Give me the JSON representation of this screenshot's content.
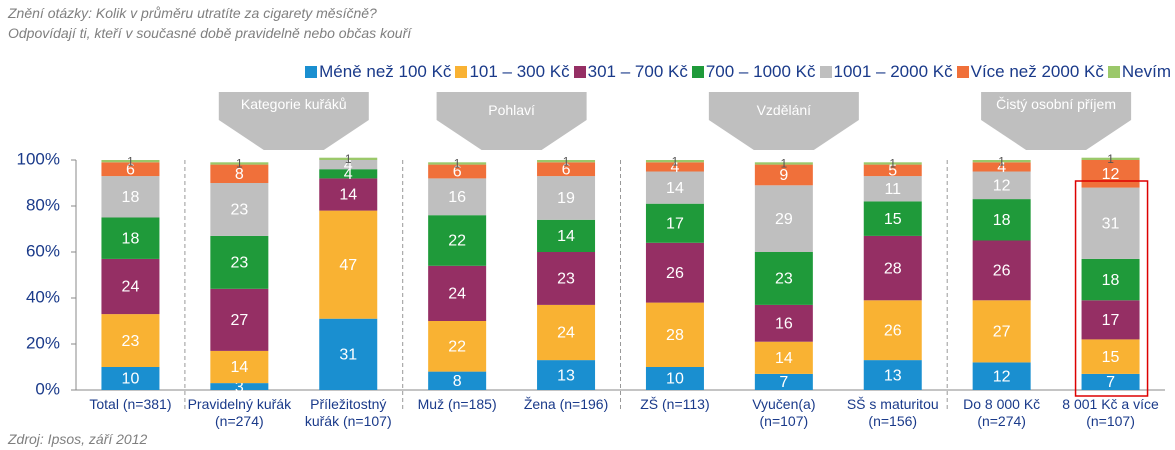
{
  "chart_data": {
    "type": "stacked_bar",
    "title": "Znění otázky: Kolik v průměru utratíte za cigarety měsíčně?",
    "subtitle": "Odpovídají ti, kteří v současné době pravidelně nebo občas kouří",
    "source": "Zdroj: Ipsos, září 2012",
    "groups": [
      "Kategorie kuřáků",
      "Pohlaví",
      "Vzdělání",
      "Čistý osobní příjem"
    ],
    "categories": [
      "Total (n=381)",
      "Pravidelný kuřák (n=274)",
      "Příležitostný kuřák (n=107)",
      "Muž (n=185)",
      "Žena (n=196)",
      "ZŠ (n=113)",
      "Vyučen(a) (n=107)",
      "SŠ s maturitou (n=156)",
      "Do 8 000 Kč (n=274)",
      "8 001 Kč a více (n=107)"
    ],
    "series": [
      {
        "name": "Méně než 100 Kč",
        "color": "#1a8fd0",
        "values": [
          10,
          3,
          31,
          8,
          13,
          10,
          7,
          13,
          12,
          7
        ]
      },
      {
        "name": "101 – 300 Kč",
        "color": "#f9b233",
        "values": [
          23,
          14,
          47,
          22,
          24,
          28,
          14,
          26,
          27,
          15
        ]
      },
      {
        "name": "301 – 700 Kč",
        "color": "#952f64",
        "values": [
          24,
          27,
          14,
          24,
          23,
          26,
          16,
          28,
          26,
          17
        ]
      },
      {
        "name": "700 – 1000 Kč",
        "color": "#1f9a3a",
        "values": [
          18,
          23,
          4,
          22,
          14,
          17,
          23,
          15,
          18,
          18
        ]
      },
      {
        "name": "1001 – 2000 Kč",
        "color": "#bfbfbf",
        "values": [
          18,
          23,
          4,
          16,
          19,
          14,
          29,
          11,
          12,
          31
        ]
      },
      {
        "name": "Více než 2000 Kč",
        "color": "#f0703a",
        "values": [
          6,
          8,
          null,
          6,
          6,
          4,
          9,
          5,
          4,
          12
        ]
      },
      {
        "name": "Nevím",
        "color": "#9bc86a",
        "values": [
          1,
          1,
          1,
          1,
          1,
          1,
          1,
          1,
          1,
          1
        ]
      }
    ],
    "ylim": [
      0,
      100
    ],
    "yticks": [
      {
        "value": 0,
        "label": "0%"
      },
      {
        "value": 20,
        "label": "20%"
      },
      {
        "value": 40,
        "label": "40%"
      },
      {
        "value": 60,
        "label": "60%"
      },
      {
        "value": 80,
        "label": "80%"
      },
      {
        "value": 100,
        "label": "100%"
      }
    ]
  }
}
